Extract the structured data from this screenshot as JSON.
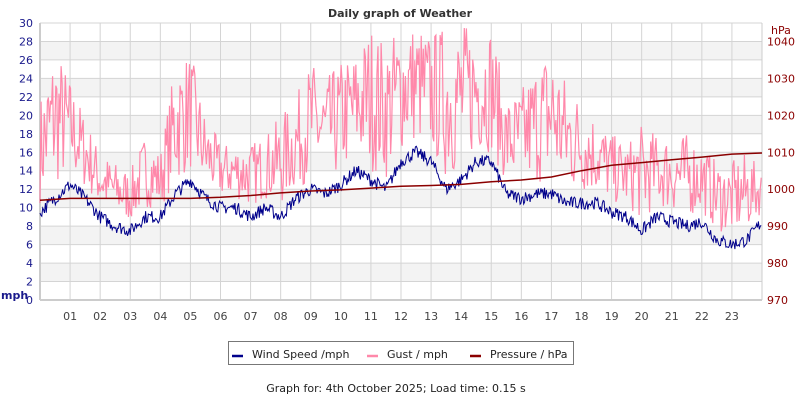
{
  "chart_data": {
    "type": "line",
    "title": "Daily graph of Weather",
    "left_axis": {
      "label": "mph",
      "ylim": [
        0,
        30
      ],
      "ticks": [
        0,
        2,
        4,
        6,
        8,
        10,
        12,
        14,
        16,
        18,
        20,
        22,
        24,
        26,
        28,
        30
      ],
      "color": "#1a1a8c"
    },
    "right_axis": {
      "label": "hPa",
      "ylim": [
        970,
        1045
      ],
      "ticks": [
        970,
        980,
        990,
        1000,
        1010,
        1020,
        1030,
        1040
      ],
      "color": "#8b0000"
    },
    "x_ticks": [
      "01",
      "02",
      "03",
      "04",
      "05",
      "06",
      "07",
      "08",
      "09",
      "10",
      "11",
      "12",
      "13",
      "14",
      "15",
      "16",
      "17",
      "18",
      "19",
      "20",
      "21",
      "22",
      "23"
    ],
    "xlim_hours": [
      0,
      24
    ],
    "grid": true,
    "legend_position": "bottom",
    "series": [
      {
        "name": "Wind Speed /mph",
        "color": "#00008b",
        "axis": "left",
        "x_hours_step": 0.5,
        "values": [
          9.5,
          11,
          12.5,
          11,
          9,
          8,
          7.5,
          9,
          9,
          11.5,
          13,
          11,
          10,
          10,
          9,
          10,
          9,
          11,
          12,
          11.5,
          12.5,
          14,
          13,
          12,
          15,
          16,
          15,
          12,
          13,
          15,
          15,
          11.5,
          11,
          11.5,
          11.5,
          10.5,
          10.5,
          10.5,
          9.5,
          9,
          7.5,
          9,
          8.5,
          8,
          8.5,
          6.5,
          6,
          6.5,
          8.5
        ]
      },
      {
        "name": "Gust / mph",
        "color": "#ff88aa",
        "axis": "left",
        "x_hours_step": 0.5,
        "values": [
          22,
          28,
          24,
          20,
          16,
          15,
          14,
          18,
          16,
          26,
          27,
          20,
          17,
          17,
          17,
          18,
          20,
          22,
          26,
          24,
          26,
          27,
          30,
          28,
          30,
          30,
          29,
          30,
          30,
          30,
          30,
          22,
          23,
          26,
          28,
          24,
          22,
          20,
          18,
          17,
          19,
          18,
          18,
          18,
          17,
          15,
          15,
          16,
          14
        ]
      },
      {
        "name": "Pressure / hPa",
        "color": "#8b0000",
        "axis": "right",
        "x_hours_step": 1,
        "values": [
          997,
          997.5,
          997.5,
          997.5,
          997.5,
          997.5,
          997.8,
          998.3,
          999,
          999.5,
          999.8,
          1000.3,
          1000.8,
          1001,
          1001.3,
          1002,
          1002.5,
          1003.3,
          1005,
          1006.5,
          1007.2,
          1008,
          1008.7,
          1009.5,
          1009.8
        ]
      }
    ]
  },
  "footer": "Graph for: 4th October 2025; Load time: 0.15 s"
}
